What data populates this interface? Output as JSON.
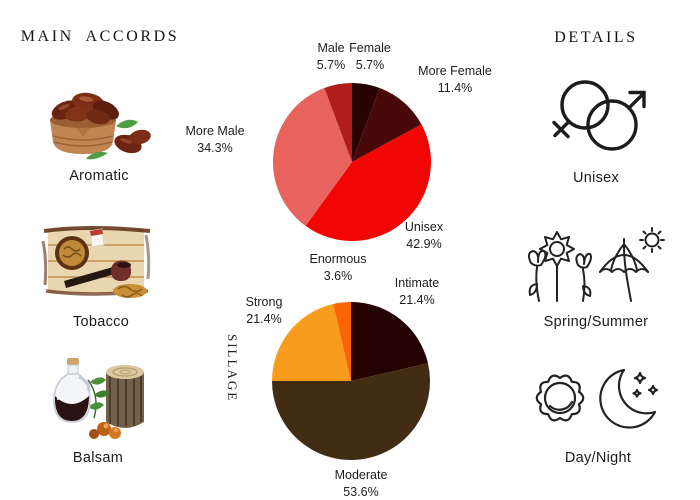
{
  "page": {
    "background": "#ffffff"
  },
  "left_panel": {
    "title": "MAIN ACCORDS",
    "items": [
      {
        "label": "Aromatic",
        "icon": "dates-in-wooden-bowl-image"
      },
      {
        "label": "Tobacco",
        "icon": "tobacco-pipe-image"
      },
      {
        "label": "Balsam",
        "icon": "balsam-bottle-log-resin-image"
      }
    ]
  },
  "right_panel": {
    "title": "DETAILS",
    "items": [
      {
        "label": "Unisex",
        "icon": "male-female-gender-icon"
      },
      {
        "label": "Spring/Summer",
        "icon": "flowers-umbrella-sun-icon"
      },
      {
        "label": "Day/Night",
        "icon": "sun-moon-stars-icon"
      }
    ]
  },
  "chart_data": [
    {
      "type": "pie",
      "name": "gender-audience",
      "title": "",
      "start_angle_deg": 0,
      "clockwise": true,
      "legend_position": "around",
      "slices": [
        {
          "label": "Female",
          "pct_label": "5.7%",
          "value": 5.7,
          "color": "#2a0404"
        },
        {
          "label": "More Female",
          "pct_label": "11.4%",
          "value": 11.4,
          "color": "#480908"
        },
        {
          "label": "Unisex",
          "pct_label": "42.9%",
          "value": 42.9,
          "color": "#f20505"
        },
        {
          "label": "More Male",
          "pct_label": "34.3%",
          "value": 34.3,
          "color": "#e8635d"
        },
        {
          "label": "Male",
          "pct_label": "5.7%",
          "value": 5.7,
          "color": "#b01d1d"
        }
      ]
    },
    {
      "type": "pie",
      "name": "sillage",
      "title": "SILLAGE",
      "start_angle_deg": 0,
      "clockwise": true,
      "legend_position": "around",
      "slices": [
        {
          "label": "Intimate",
          "pct_label": "21.4%",
          "value": 21.4,
          "color": "#260303"
        },
        {
          "label": "Moderate",
          "pct_label": "53.6%",
          "value": 53.6,
          "color": "#422d14"
        },
        {
          "label": "Strong",
          "pct_label": "21.4%",
          "value": 21.4,
          "color": "#f89c1d"
        },
        {
          "label": "Enormous",
          "pct_label": "3.6%",
          "value": 3.6,
          "color": "#fa6406"
        }
      ]
    }
  ]
}
